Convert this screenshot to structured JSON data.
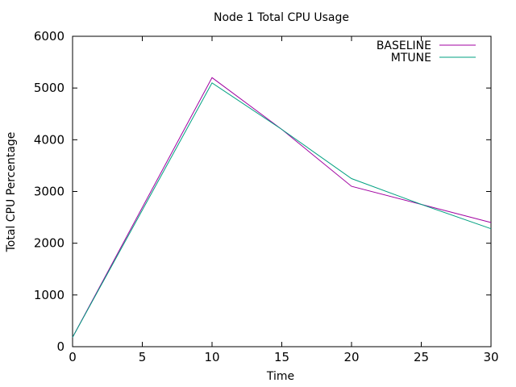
{
  "chart_data": {
    "type": "line",
    "title": "Node 1 Total CPU Usage",
    "xlabel": "Time",
    "ylabel": "Total CPU Percentage",
    "xlim": [
      0,
      30
    ],
    "ylim": [
      0,
      6000
    ],
    "xticks": [
      0,
      5,
      10,
      15,
      20,
      25,
      30
    ],
    "yticks": [
      0,
      1000,
      2000,
      3000,
      4000,
      5000,
      6000
    ],
    "grid": false,
    "legend_position": "top-right",
    "series": [
      {
        "name": "BASELINE",
        "color": "#a000a0",
        "x": [
          0,
          10,
          15,
          20,
          25,
          30
        ],
        "y": [
          180,
          5200,
          4200,
          3100,
          2750,
          2400
        ]
      },
      {
        "name": "MTUNE",
        "color": "#00a080",
        "x": [
          0,
          10,
          15,
          20,
          25,
          30
        ],
        "y": [
          180,
          5100,
          4200,
          3250,
          2750,
          2280
        ]
      }
    ]
  }
}
